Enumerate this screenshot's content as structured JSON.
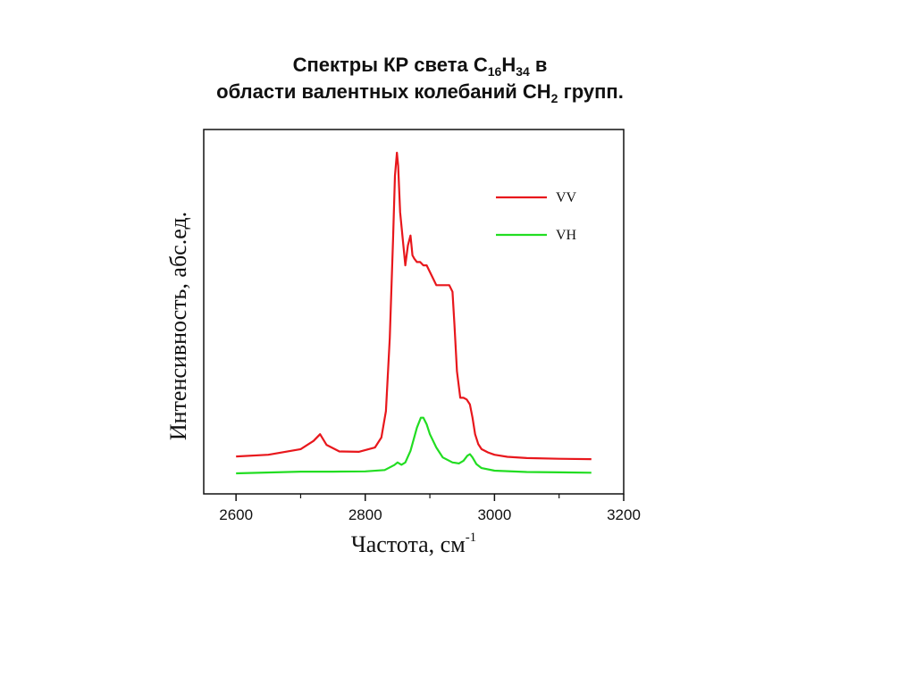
{
  "title": {
    "line1_prefix": "Спектры КР света C",
    "line1_sub1": "16",
    "line1_mid": "H",
    "line1_sub2": "34",
    "line1_suffix": " в",
    "line2_prefix": "области валентных колебаний CH",
    "line2_sub": "2",
    "line2_suffix": " групп."
  },
  "chart_data": {
    "type": "line",
    "xlabel": "Частота, см",
    "xlabel_sup": "-1",
    "ylabel": "Интенсивность, абс.ед.",
    "xlim": [
      2550,
      3200
    ],
    "ylim": [
      -0.05,
      1.05
    ],
    "xticks": [
      2600,
      2800,
      3000,
      3200
    ],
    "grid": false,
    "legend_position": "top-right",
    "series": [
      {
        "name": "VV",
        "color": "#e8171c",
        "x": [
          2600,
          2650,
          2700,
          2720,
          2730,
          2740,
          2760,
          2790,
          2815,
          2825,
          2832,
          2838,
          2843,
          2846,
          2849,
          2851,
          2854,
          2858,
          2862,
          2866,
          2870,
          2873,
          2876,
          2880,
          2885,
          2890,
          2895,
          2900,
          2905,
          2910,
          2915,
          2920,
          2925,
          2930,
          2935,
          2938,
          2942,
          2947,
          2952,
          2957,
          2962,
          2966,
          2970,
          2975,
          2980,
          2990,
          3000,
          3020,
          3050,
          3100,
          3150
        ],
        "values": [
          0.063,
          0.068,
          0.085,
          0.11,
          0.13,
          0.098,
          0.078,
          0.077,
          0.09,
          0.12,
          0.2,
          0.42,
          0.72,
          0.91,
          0.98,
          0.94,
          0.8,
          0.72,
          0.64,
          0.7,
          0.73,
          0.67,
          0.66,
          0.65,
          0.65,
          0.64,
          0.64,
          0.62,
          0.6,
          0.58,
          0.58,
          0.58,
          0.58,
          0.58,
          0.56,
          0.46,
          0.32,
          0.24,
          0.24,
          0.235,
          0.22,
          0.18,
          0.13,
          0.1,
          0.085,
          0.075,
          0.068,
          0.062,
          0.058,
          0.056,
          0.055
        ]
      },
      {
        "name": "VH",
        "color": "#22dd22",
        "x": [
          2600,
          2700,
          2750,
          2800,
          2830,
          2845,
          2850,
          2856,
          2862,
          2870,
          2880,
          2886,
          2890,
          2895,
          2900,
          2910,
          2920,
          2935,
          2945,
          2952,
          2958,
          2962,
          2966,
          2972,
          2980,
          3000,
          3050,
          3100,
          3150
        ],
        "values": [
          0.012,
          0.017,
          0.017,
          0.018,
          0.022,
          0.037,
          0.045,
          0.038,
          0.045,
          0.08,
          0.15,
          0.18,
          0.18,
          0.16,
          0.13,
          0.09,
          0.06,
          0.045,
          0.042,
          0.05,
          0.065,
          0.07,
          0.06,
          0.04,
          0.028,
          0.02,
          0.016,
          0.015,
          0.014
        ]
      }
    ]
  }
}
